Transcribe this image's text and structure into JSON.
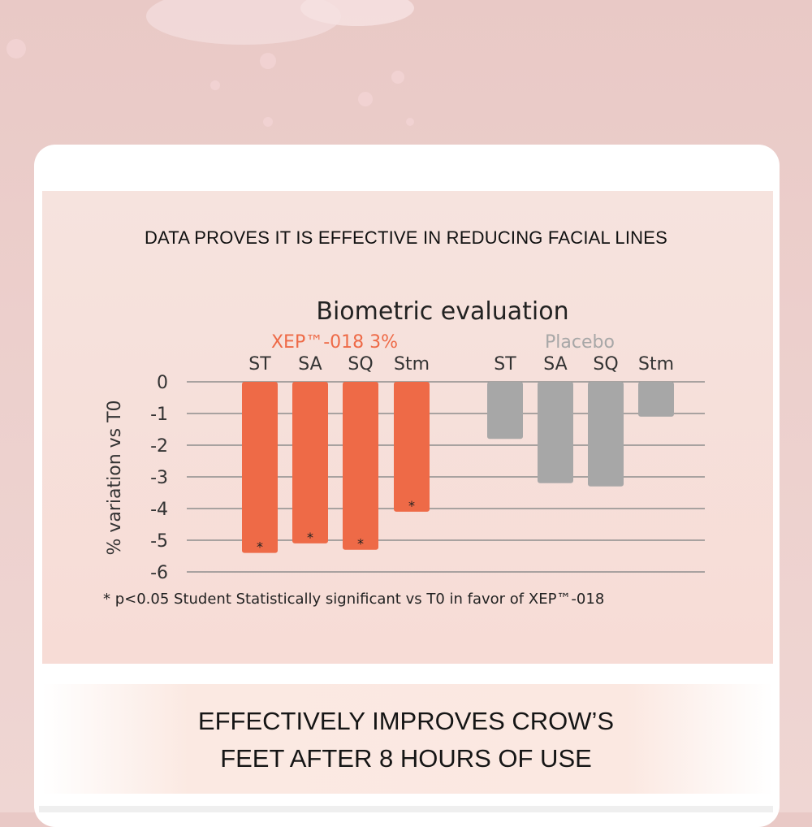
{
  "headline_top": "DATA PROVES IT IS EFFECTIVE IN REDUCING FACIAL LINES",
  "headline_bottom_line1": "EFFECTIVELY IMPROVES CROW’S",
  "headline_bottom_line2": "FEET AFTER 8 HOURS OF USE",
  "colors": {
    "treatment": "#ee6a47",
    "placebo": "#a7a7a7",
    "grid": "#8d8d8d"
  },
  "chart_data": {
    "type": "bar",
    "title": "Biometric evaluation",
    "ylabel": "% variation vs T0",
    "ylim": [
      -6,
      0
    ],
    "yticks": [
      0,
      -1,
      -2,
      -3,
      -4,
      -5,
      -6
    ],
    "groups": [
      {
        "name": "XEP™-018 3%",
        "color": "#ee6a47",
        "categories": [
          "ST",
          "SA",
          "SQ",
          "Stm"
        ],
        "values": [
          -5.4,
          -5.1,
          -5.3,
          -4.1
        ],
        "marks": [
          "*",
          "*",
          "*",
          "*"
        ]
      },
      {
        "name": "Placebo",
        "color": "#a7a7a7",
        "categories": [
          "ST",
          "SA",
          "SQ",
          "Stm"
        ],
        "values": [
          -1.8,
          -3.2,
          -3.3,
          -1.1
        ],
        "marks": [
          "",
          "",
          "",
          ""
        ]
      }
    ],
    "footnote": "* p<0.05 Student Statistically significant vs T0 in favor of XEP™-018",
    "grid": true
  }
}
